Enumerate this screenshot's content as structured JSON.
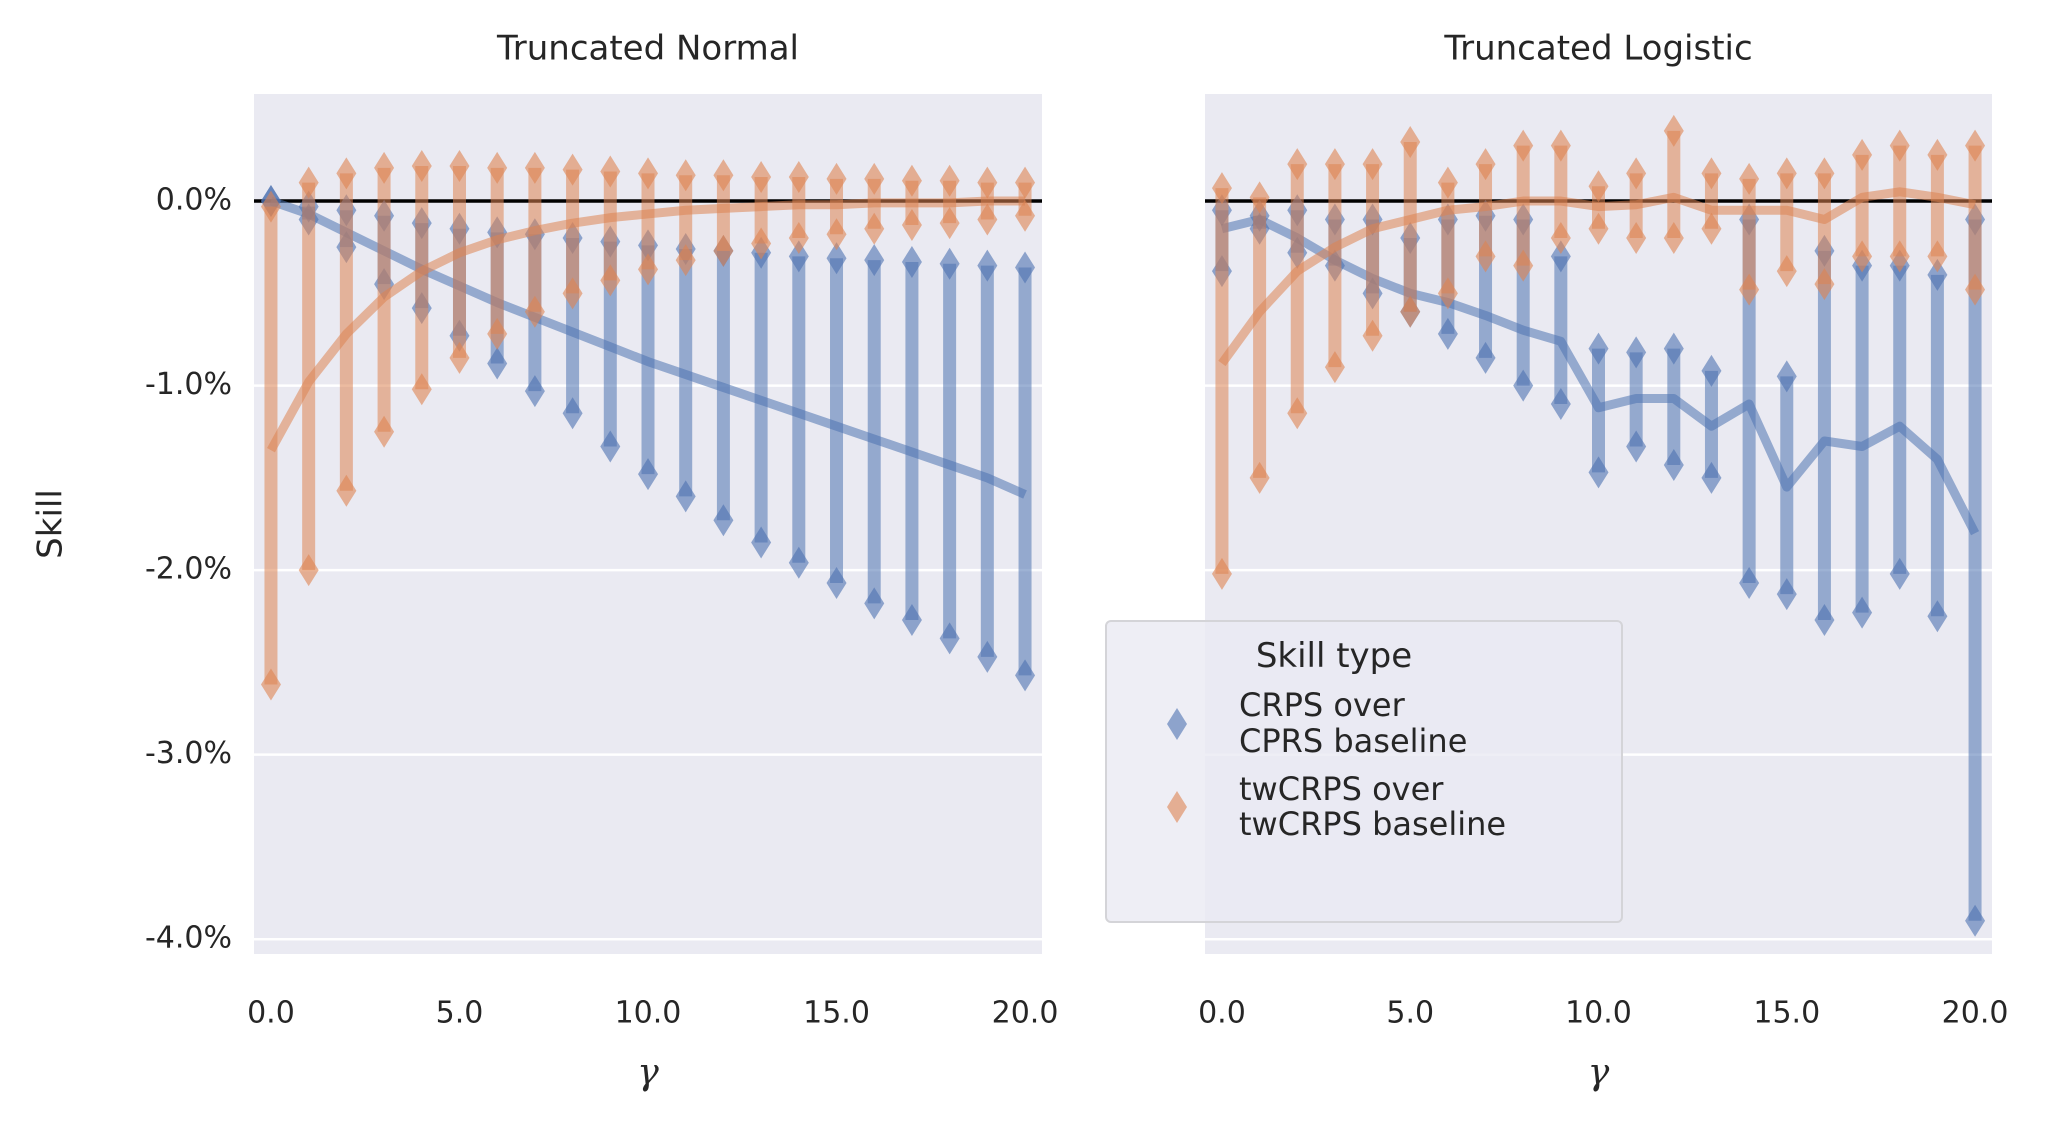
{
  "chart_data": [
    {
      "type": "line",
      "title": "Truncated Normal",
      "ylabel": "Skill",
      "xlabel": "γ",
      "x": [
        0,
        1,
        2,
        3,
        4,
        5,
        6,
        7,
        8,
        9,
        10,
        11,
        12,
        13,
        14,
        15,
        16,
        17,
        18,
        19,
        20
      ],
      "xlim": [
        -0.45,
        20.45
      ],
      "xticks": [
        {
          "value": 0,
          "label": "0.0"
        },
        {
          "value": 5,
          "label": "5.0"
        },
        {
          "value": 10,
          "label": "10.0"
        },
        {
          "value": 15,
          "label": "15.0"
        },
        {
          "value": 20,
          "label": "20.0"
        }
      ],
      "ylim": [
        -4.08,
        0.58
      ],
      "yticks": [
        {
          "value": 0,
          "label": "0.0%"
        },
        {
          "value": -1,
          "label": "-1.0%"
        },
        {
          "value": -2,
          "label": "-2.0%"
        },
        {
          "value": -3,
          "label": "-3.0%"
        },
        {
          "value": -4,
          "label": "-4.0%"
        }
      ],
      "grid": true,
      "reference_line": 0,
      "series": [
        {
          "name": "CRPS over\nCPRS baseline",
          "color": "#4c72b0",
          "values": [
            0,
            -0.07,
            -0.17,
            -0.27,
            -0.37,
            -0.46,
            -0.55,
            -0.63,
            -0.71,
            -0.79,
            -0.87,
            -0.94,
            -1.01,
            -1.08,
            -1.15,
            -1.22,
            -1.29,
            -1.36,
            -1.43,
            -1.5,
            -1.59
          ],
          "low": [
            0,
            -0.1,
            -0.25,
            -0.45,
            -0.58,
            -0.73,
            -0.88,
            -1.03,
            -1.15,
            -1.33,
            -1.48,
            -1.6,
            -1.73,
            -1.85,
            -1.96,
            -2.07,
            -2.18,
            -2.27,
            -2.37,
            -2.47,
            -2.57
          ],
          "high": [
            0,
            -0.03,
            -0.05,
            -0.08,
            -0.12,
            -0.15,
            -0.17,
            -0.18,
            -0.2,
            -0.22,
            -0.24,
            -0.26,
            -0.27,
            -0.28,
            -0.3,
            -0.31,
            -0.32,
            -0.33,
            -0.34,
            -0.35,
            -0.36
          ]
        },
        {
          "name": "twCRPS over\ntwCRPS baseline",
          "color": "#dd8452",
          "values": [
            -1.35,
            -0.98,
            -0.72,
            -0.52,
            -0.38,
            -0.28,
            -0.21,
            -0.16,
            -0.12,
            -0.09,
            -0.07,
            -0.05,
            -0.04,
            -0.03,
            -0.02,
            -0.02,
            -0.01,
            -0.01,
            -0.01,
            0,
            0
          ],
          "low": [
            -2.62,
            -2.0,
            -1.57,
            -1.25,
            -1.02,
            -0.85,
            -0.72,
            -0.6,
            -0.5,
            -0.43,
            -0.37,
            -0.32,
            -0.27,
            -0.23,
            -0.2,
            -0.18,
            -0.15,
            -0.13,
            -0.12,
            -0.1,
            -0.08
          ],
          "high": [
            -0.03,
            0.1,
            0.15,
            0.18,
            0.19,
            0.19,
            0.18,
            0.18,
            0.17,
            0.16,
            0.15,
            0.14,
            0.14,
            0.13,
            0.13,
            0.12,
            0.12,
            0.11,
            0.11,
            0.1,
            0.1
          ]
        }
      ]
    },
    {
      "type": "line",
      "title": "Truncated Logistic",
      "xlabel": "γ",
      "x": [
        0,
        1,
        2,
        3,
        4,
        5,
        6,
        7,
        8,
        9,
        10,
        11,
        12,
        13,
        14,
        15,
        16,
        17,
        18,
        19,
        20
      ],
      "xlim": [
        -0.45,
        20.45
      ],
      "xticks": [
        {
          "value": 0,
          "label": "0.0"
        },
        {
          "value": 5,
          "label": "5.0"
        },
        {
          "value": 10,
          "label": "10.0"
        },
        {
          "value": 15,
          "label": "15.0"
        },
        {
          "value": 20,
          "label": "20.0"
        }
      ],
      "ylim": [
        -4.08,
        0.58
      ],
      "sharey": true,
      "grid": true,
      "reference_line": 0,
      "legend_title": "Skill type",
      "legend": "lower left",
      "series": [
        {
          "name": "CRPS over\nCPRS baseline",
          "color": "#4c72b0",
          "values": [
            -0.15,
            -0.1,
            -0.2,
            -0.32,
            -0.42,
            -0.5,
            -0.55,
            -0.62,
            -0.7,
            -0.76,
            -1.12,
            -1.07,
            -1.07,
            -1.22,
            -1.1,
            -1.55,
            -1.3,
            -1.33,
            -1.22,
            -1.4,
            -1.8
          ],
          "low": [
            -0.38,
            -0.15,
            -0.28,
            -0.35,
            -0.5,
            -0.6,
            -0.72,
            -0.85,
            -1.0,
            -1.1,
            -1.47,
            -1.33,
            -1.43,
            -1.5,
            -2.07,
            -2.13,
            -2.27,
            -2.23,
            -2.02,
            -2.25,
            -3.9
          ],
          "high": [
            -0.05,
            -0.08,
            -0.05,
            -0.1,
            -0.1,
            -0.2,
            -0.1,
            -0.08,
            -0.1,
            -0.3,
            -0.8,
            -0.82,
            -0.8,
            -0.92,
            -0.1,
            -0.95,
            -0.27,
            -0.35,
            -0.35,
            -0.4,
            -0.1
          ]
        },
        {
          "name": "twCRPS over\ntwCRPS baseline",
          "color": "#dd8452",
          "values": [
            -0.88,
            -0.6,
            -0.38,
            -0.25,
            -0.15,
            -0.1,
            -0.05,
            -0.03,
            0,
            0,
            -0.03,
            -0.02,
            0.02,
            -0.05,
            -0.05,
            -0.05,
            -0.1,
            0.02,
            0.05,
            0.02,
            -0.02
          ],
          "low": [
            -2.02,
            -1.5,
            -1.15,
            -0.9,
            -0.73,
            -0.6,
            -0.5,
            -0.3,
            -0.35,
            -0.2,
            -0.15,
            -0.2,
            -0.2,
            -0.15,
            -0.48,
            -0.38,
            -0.45,
            -0.3,
            -0.3,
            -0.3,
            -0.48
          ],
          "high": [
            0.07,
            0.02,
            0.2,
            0.2,
            0.2,
            0.32,
            0.1,
            0.2,
            0.3,
            0.3,
            0.08,
            0.15,
            0.38,
            0.15,
            0.12,
            0.15,
            0.15,
            0.25,
            0.3,
            0.25,
            0.3
          ]
        }
      ]
    }
  ]
}
